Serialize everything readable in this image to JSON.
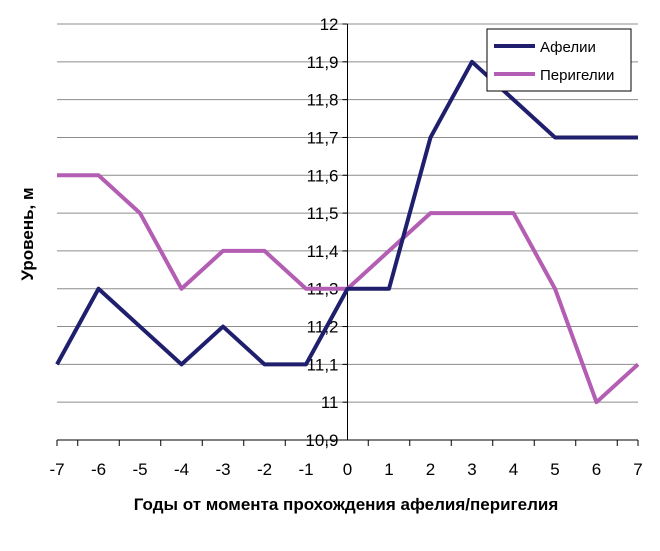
{
  "chart_data": {
    "type": "line",
    "title": "",
    "xlabel": "Годы от момента прохождения афелия/перигелия",
    "ylabel": "Уровень, м",
    "x": [
      -7,
      -6,
      -5,
      -4,
      -3,
      -2,
      -1,
      0,
      1,
      2,
      3,
      4,
      5,
      6,
      7
    ],
    "x_tick_labels": [
      "-7",
      "-6",
      "-5",
      "-4",
      "-3",
      "-2",
      "-1",
      "0",
      "1",
      "2",
      "3",
      "4",
      "5",
      "6",
      "7"
    ],
    "ylim": [
      10.9,
      12
    ],
    "y_ticks": [
      10.9,
      11,
      11.1,
      11.2,
      11.3,
      11.4,
      11.5,
      11.6,
      11.7,
      11.8,
      11.9,
      12
    ],
    "y_tick_labels": [
      "10,9",
      "11",
      "11,1",
      "11,2",
      "11,3",
      "11,4",
      "11,5",
      "11,6",
      "11,7",
      "11,8",
      "11,9",
      "12"
    ],
    "grid": "horizontal",
    "legend_position": "top-right",
    "series": [
      {
        "name": "Афелии",
        "color": "#1f1f6e",
        "values": [
          11.1,
          11.3,
          11.2,
          11.1,
          11.2,
          11.1,
          11.1,
          11.3,
          11.3,
          11.7,
          11.9,
          11.8,
          11.7,
          11.7,
          11.7
        ]
      },
      {
        "name": "Перигелии",
        "color": "#b35db3",
        "values": [
          11.6,
          11.6,
          11.5,
          11.3,
          11.4,
          11.4,
          11.3,
          11.3,
          11.4,
          11.5,
          11.5,
          11.5,
          11.3,
          11.0,
          11.1
        ]
      }
    ]
  }
}
